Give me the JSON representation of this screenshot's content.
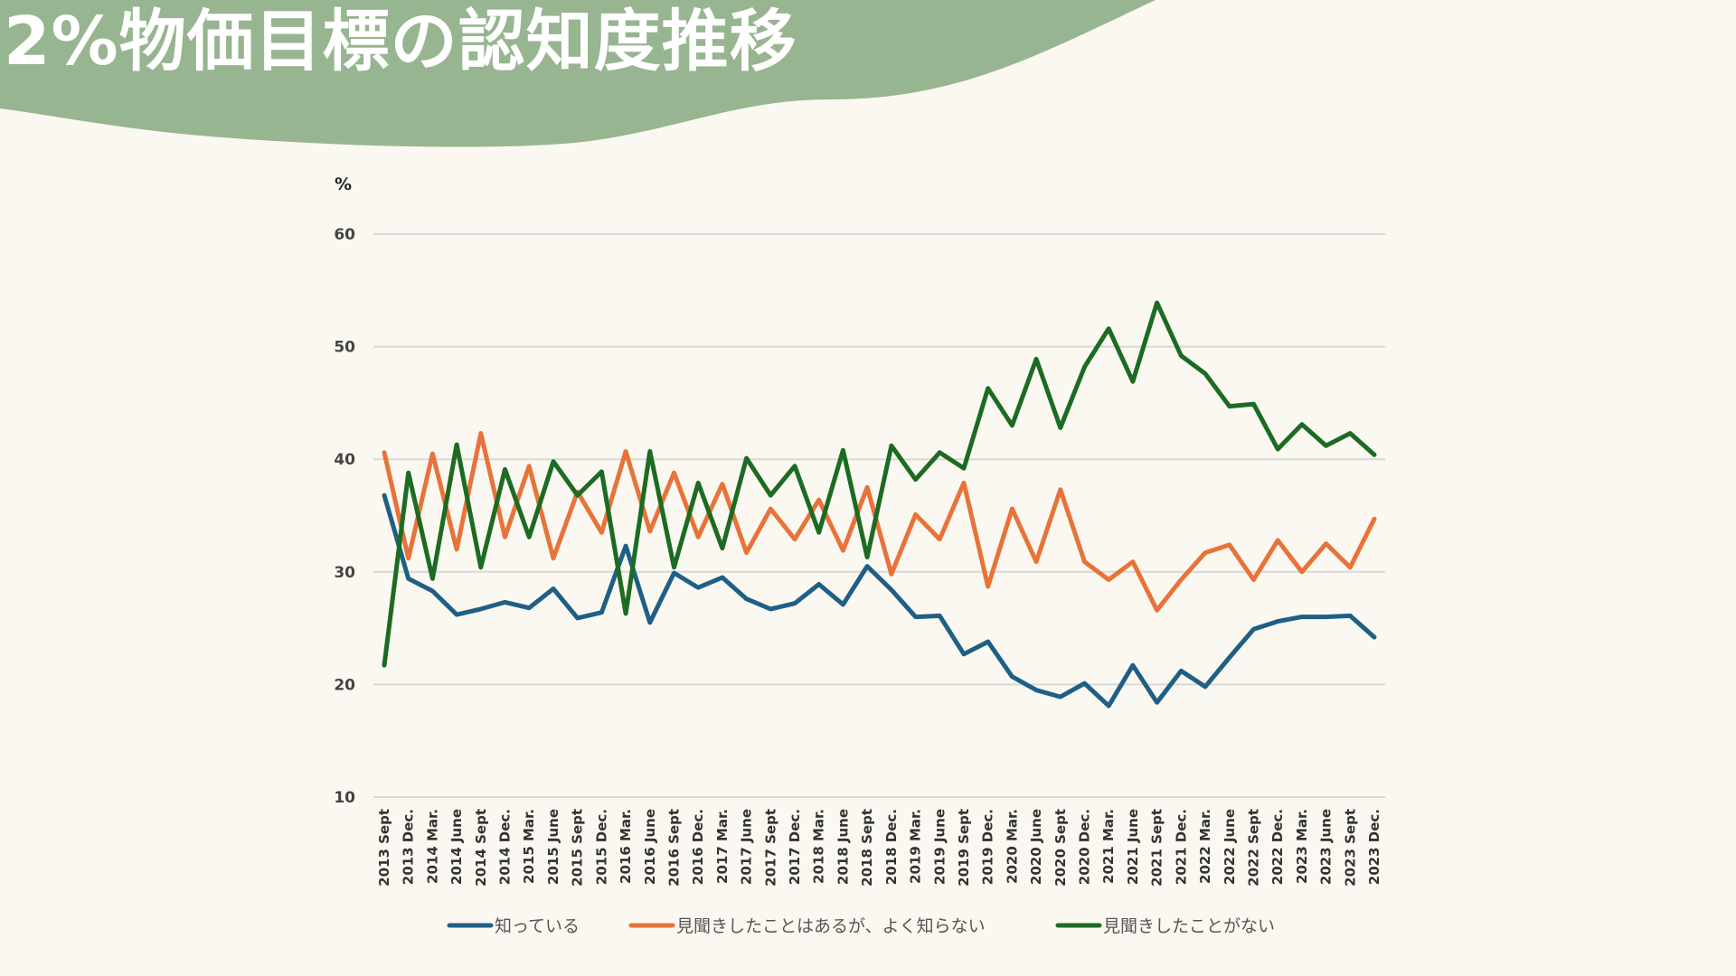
{
  "title": "2%物価目標の認知度推移",
  "colors": {
    "banner": "#97b590",
    "background": "#faf8f0",
    "grid": "#d8d8d8"
  },
  "chart_data": {
    "type": "line",
    "unit_label": "%",
    "ylim": [
      10,
      60
    ],
    "yticks": [
      10,
      20,
      30,
      40,
      50,
      60
    ],
    "grid": true,
    "legend_position": "bottom",
    "categories": [
      "2013 Sept",
      "2013 Dec.",
      "2014 Mar.",
      "2014 June",
      "2014 Sept",
      "2014 Dec.",
      "2015 Mar.",
      "2015 June",
      "2015 Sept",
      "2015 Dec.",
      "2016 Mar.",
      "2016 June",
      "2016 Sept",
      "2016 Dec.",
      "2017 Mar.",
      "2017 June",
      "2017 Sept",
      "2017 Dec.",
      "2018 Mar.",
      "2018 June",
      "2018 Sept",
      "2018 Dec.",
      "2019 Mar.",
      "2019 June",
      "2019 Sept",
      "2019 Dec.",
      "2020 Mar.",
      "2020 June",
      "2020 Sept",
      "2020 Dec.",
      "2021 Mar.",
      "2021 June",
      "2021 Sept",
      "2021 Dec.",
      "2022 Mar.",
      "2022 June",
      "2022 Sept",
      "2022 Dec.",
      "2023 Mar.",
      "2023 June",
      "2023 Sept",
      "2023 Dec."
    ],
    "series": [
      {
        "name": "知っている",
        "color": "#1f5f85",
        "values": [
          36.8,
          29.4,
          28.3,
          26.2,
          26.7,
          27.3,
          26.8,
          28.5,
          25.9,
          26.4,
          32.3,
          25.5,
          29.9,
          28.6,
          29.5,
          27.6,
          26.7,
          27.2,
          28.9,
          27.1,
          30.5,
          28.4,
          26.0,
          26.1,
          22.7,
          23.8,
          20.7,
          19.5,
          18.9,
          20.1,
          18.1,
          21.7,
          18.4,
          21.2,
          19.8,
          22.4,
          24.9,
          25.6,
          26.0,
          26.0,
          26.1,
          24.2
        ]
      },
      {
        "name": "見聞きしたことはあるが、よく知らない",
        "color": "#e8733a",
        "values": [
          40.6,
          31.2,
          40.5,
          32.0,
          42.3,
          33.1,
          39.4,
          31.2,
          37.1,
          33.5,
          40.7,
          33.6,
          38.8,
          33.1,
          37.8,
          31.7,
          35.6,
          32.9,
          36.4,
          31.9,
          37.5,
          29.8,
          35.1,
          32.9,
          37.9,
          28.7,
          35.6,
          30.9,
          37.3,
          30.9,
          29.3,
          30.9,
          26.6,
          29.3,
          31.7,
          32.4,
          29.3,
          32.8,
          30.0,
          32.5,
          30.4,
          34.7
        ]
      },
      {
        "name": "見聞きしたことがない",
        "color": "#1c6b23",
        "values": [
          21.7,
          38.8,
          29.4,
          41.3,
          30.4,
          39.1,
          33.1,
          39.8,
          36.8,
          38.9,
          26.3,
          40.7,
          30.4,
          37.9,
          32.1,
          40.1,
          36.8,
          39.4,
          33.5,
          40.8,
          31.3,
          41.2,
          38.2,
          40.6,
          39.2,
          46.3,
          43.0,
          48.9,
          42.8,
          48.2,
          51.6,
          46.9,
          53.9,
          49.2,
          47.6,
          44.7,
          44.9,
          40.9,
          43.1,
          41.2,
          42.3,
          40.4
        ]
      }
    ]
  }
}
